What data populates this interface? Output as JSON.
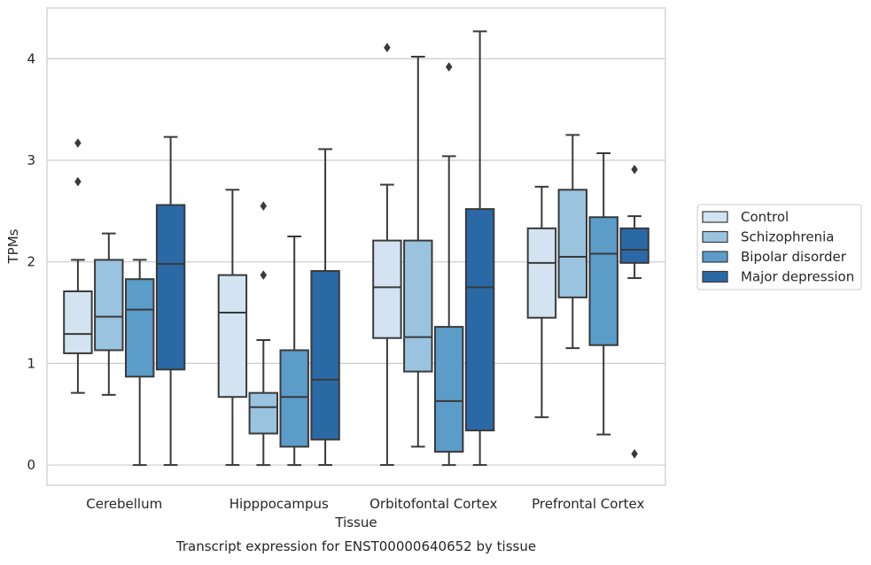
{
  "chart_data": {
    "type": "boxplot",
    "caption": "Transcript expression for ENST00000640652 by tissue",
    "xlabel": "Tissue",
    "ylabel": "TPMs",
    "ylim": [
      -0.2,
      4.5
    ],
    "yticks": [
      0,
      1,
      2,
      3,
      4
    ],
    "grid": "horizontal",
    "legend_position": "right-center",
    "categories": [
      "Cerebellum",
      "Hipppocampus",
      "Orbitofontal Cortex",
      "Prefrontal Cortex"
    ],
    "series": [
      {
        "name": "Control",
        "color": "#d3e3f1",
        "boxes": [
          {
            "whislo": 0.71,
            "q1": 1.1,
            "med": 1.29,
            "q3": 1.71,
            "whishi": 2.02,
            "fliers": [
              2.79,
              3.17
            ]
          },
          {
            "whislo": 0.0,
            "q1": 0.67,
            "med": 1.5,
            "q3": 1.87,
            "whishi": 2.71,
            "fliers": []
          },
          {
            "whislo": 0.0,
            "q1": 1.25,
            "med": 1.75,
            "q3": 2.21,
            "whishi": 2.76,
            "fliers": [
              4.11
            ]
          },
          {
            "whislo": 0.47,
            "q1": 1.45,
            "med": 1.99,
            "q3": 2.33,
            "whishi": 2.74,
            "fliers": []
          }
        ]
      },
      {
        "name": "Schizophrenia",
        "color": "#9ac3df",
        "boxes": [
          {
            "whislo": 0.69,
            "q1": 1.13,
            "med": 1.46,
            "q3": 2.02,
            "whishi": 2.28,
            "fliers": []
          },
          {
            "whislo": 0.0,
            "q1": 0.31,
            "med": 0.57,
            "q3": 0.71,
            "whishi": 1.23,
            "fliers": [
              1.87,
              2.55
            ]
          },
          {
            "whislo": 0.18,
            "q1": 0.92,
            "med": 1.26,
            "q3": 2.21,
            "whishi": 4.02,
            "fliers": []
          },
          {
            "whislo": 1.15,
            "q1": 1.65,
            "med": 2.05,
            "q3": 2.71,
            "whishi": 3.25,
            "fliers": []
          }
        ]
      },
      {
        "name": "Bipolar disorder",
        "color": "#5b9cc9",
        "boxes": [
          {
            "whislo": 0.0,
            "q1": 0.87,
            "med": 1.53,
            "q3": 1.83,
            "whishi": 2.02,
            "fliers": []
          },
          {
            "whislo": 0.0,
            "q1": 0.18,
            "med": 0.67,
            "q3": 1.13,
            "whishi": 2.25,
            "fliers": []
          },
          {
            "whislo": 0.0,
            "q1": 0.13,
            "med": 0.63,
            "q3": 1.36,
            "whishi": 3.04,
            "fliers": [
              3.92
            ]
          },
          {
            "whislo": 0.3,
            "q1": 1.18,
            "med": 2.08,
            "q3": 2.44,
            "whishi": 3.07,
            "fliers": []
          }
        ]
      },
      {
        "name": "Major depression",
        "color": "#2b69a6",
        "boxes": [
          {
            "whislo": 0.0,
            "q1": 0.94,
            "med": 1.98,
            "q3": 2.56,
            "whishi": 3.23,
            "fliers": []
          },
          {
            "whislo": 0.0,
            "q1": 0.25,
            "med": 0.84,
            "q3": 1.91,
            "whishi": 3.11,
            "fliers": []
          },
          {
            "whislo": 0.0,
            "q1": 0.34,
            "med": 1.75,
            "q3": 2.52,
            "whishi": 4.27,
            "fliers": []
          },
          {
            "whislo": 1.84,
            "q1": 1.99,
            "med": 2.12,
            "q3": 2.33,
            "whishi": 2.45,
            "fliers": [
              2.91,
              0.11
            ]
          }
        ]
      }
    ]
  },
  "style": {
    "grid_color": "#cccccc",
    "frame_color": "#cccccc",
    "line_color": "#3a3a3a"
  }
}
